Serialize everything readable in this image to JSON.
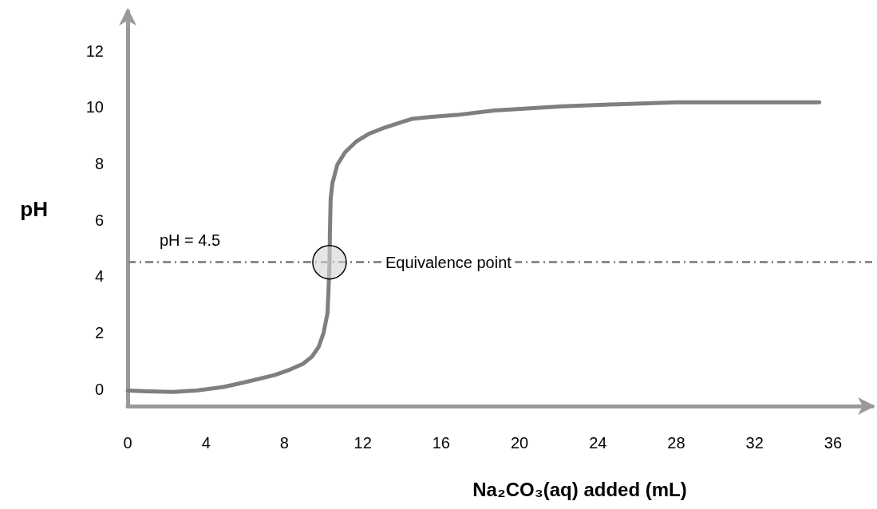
{
  "chart_data": {
    "type": "line",
    "xlabel": "Na₂CO₃(aq) added (mL)",
    "ylabel": "pH",
    "x": [
      0,
      1,
      2.3,
      3.5,
      4.9,
      6,
      7.5,
      8.3,
      8.95,
      9.4,
      9.75,
      10,
      10.2,
      10.25,
      10.3,
      10.32,
      10.36,
      10.45,
      10.7,
      11.1,
      11.65,
      12.3,
      13.1,
      14.5,
      15.5,
      16.8,
      18.7,
      22.2,
      25,
      28,
      31,
      35.3
    ],
    "values": [
      -0.05,
      -0.08,
      -0.1,
      -0.05,
      0.08,
      0.25,
      0.5,
      0.7,
      0.9,
      1.15,
      1.5,
      2,
      2.7,
      3.5,
      4.4,
      5.5,
      6.75,
      7.3,
      7.96,
      8.4,
      8.77,
      9.05,
      9.27,
      9.58,
      9.65,
      9.72,
      9.88,
      10.03,
      10.1,
      10.17,
      10.17,
      10.17
    ],
    "color": "#7f7f7f",
    "xlim": [
      0,
      38
    ],
    "ylim": [
      -0.6,
      13.4
    ],
    "xticks": [
      0,
      4,
      8,
      12,
      16,
      20,
      24,
      28,
      32,
      36
    ],
    "yticks": [
      0,
      2,
      4,
      6,
      8,
      10,
      12
    ],
    "marker": "none",
    "line_style": "solid",
    "ref_lines": [
      {
        "axis": "y",
        "value": 4.5,
        "label": "pH = 4.5",
        "line_style": "dashed",
        "color": "#8c8c8c"
      }
    ],
    "annotations": [
      "Equivalence point"
    ]
  }
}
